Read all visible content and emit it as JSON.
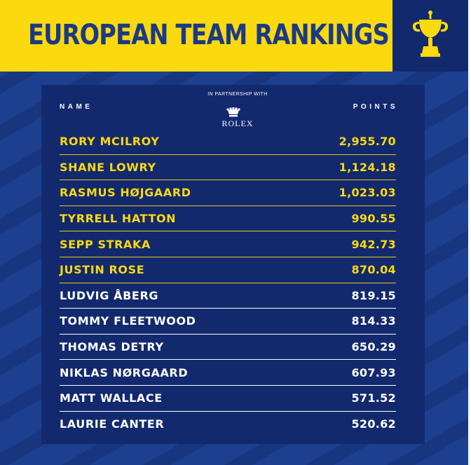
{
  "header": {
    "title": "EUROPEAN TEAM RANKINGS"
  },
  "icons": {
    "trophy": "ryder-cup-trophy-icon",
    "crown": "rolex-crown-icon"
  },
  "colors": {
    "yellow": "#fbd90f",
    "navy": "#13296e",
    "blue": "#1d3f8f",
    "title_text": "#1b3a86"
  },
  "table": {
    "name_header": "NAME",
    "points_header": "POINTS",
    "partner_text": "IN PARTNERSHIP WITH",
    "partner_brand": "ROLEX",
    "rows": [
      {
        "name": "RORY MCILROY",
        "points": "2,955.70",
        "highlight": true
      },
      {
        "name": "SHANE LOWRY",
        "points": "1,124.18",
        "highlight": true
      },
      {
        "name": "RASMUS HØJGAARD",
        "points": "1,023.03",
        "highlight": true
      },
      {
        "name": "TYRRELL HATTON",
        "points": "990.55",
        "highlight": true
      },
      {
        "name": "SEPP STRAKA",
        "points": "942.73",
        "highlight": true
      },
      {
        "name": "JUSTIN ROSE",
        "points": "870.04",
        "highlight": true
      },
      {
        "name": "LUDVIG ÅBERG",
        "points": "819.15",
        "highlight": false
      },
      {
        "name": "TOMMY FLEETWOOD",
        "points": "814.33",
        "highlight": false
      },
      {
        "name": "THOMAS DETRY",
        "points": "650.29",
        "highlight": false
      },
      {
        "name": "NIKLAS NØRGAARD",
        "points": "607.93",
        "highlight": false
      },
      {
        "name": "MATT WALLACE",
        "points": "571.52",
        "highlight": false
      },
      {
        "name": "LAURIE CANTER",
        "points": "520.62",
        "highlight": false
      }
    ]
  }
}
